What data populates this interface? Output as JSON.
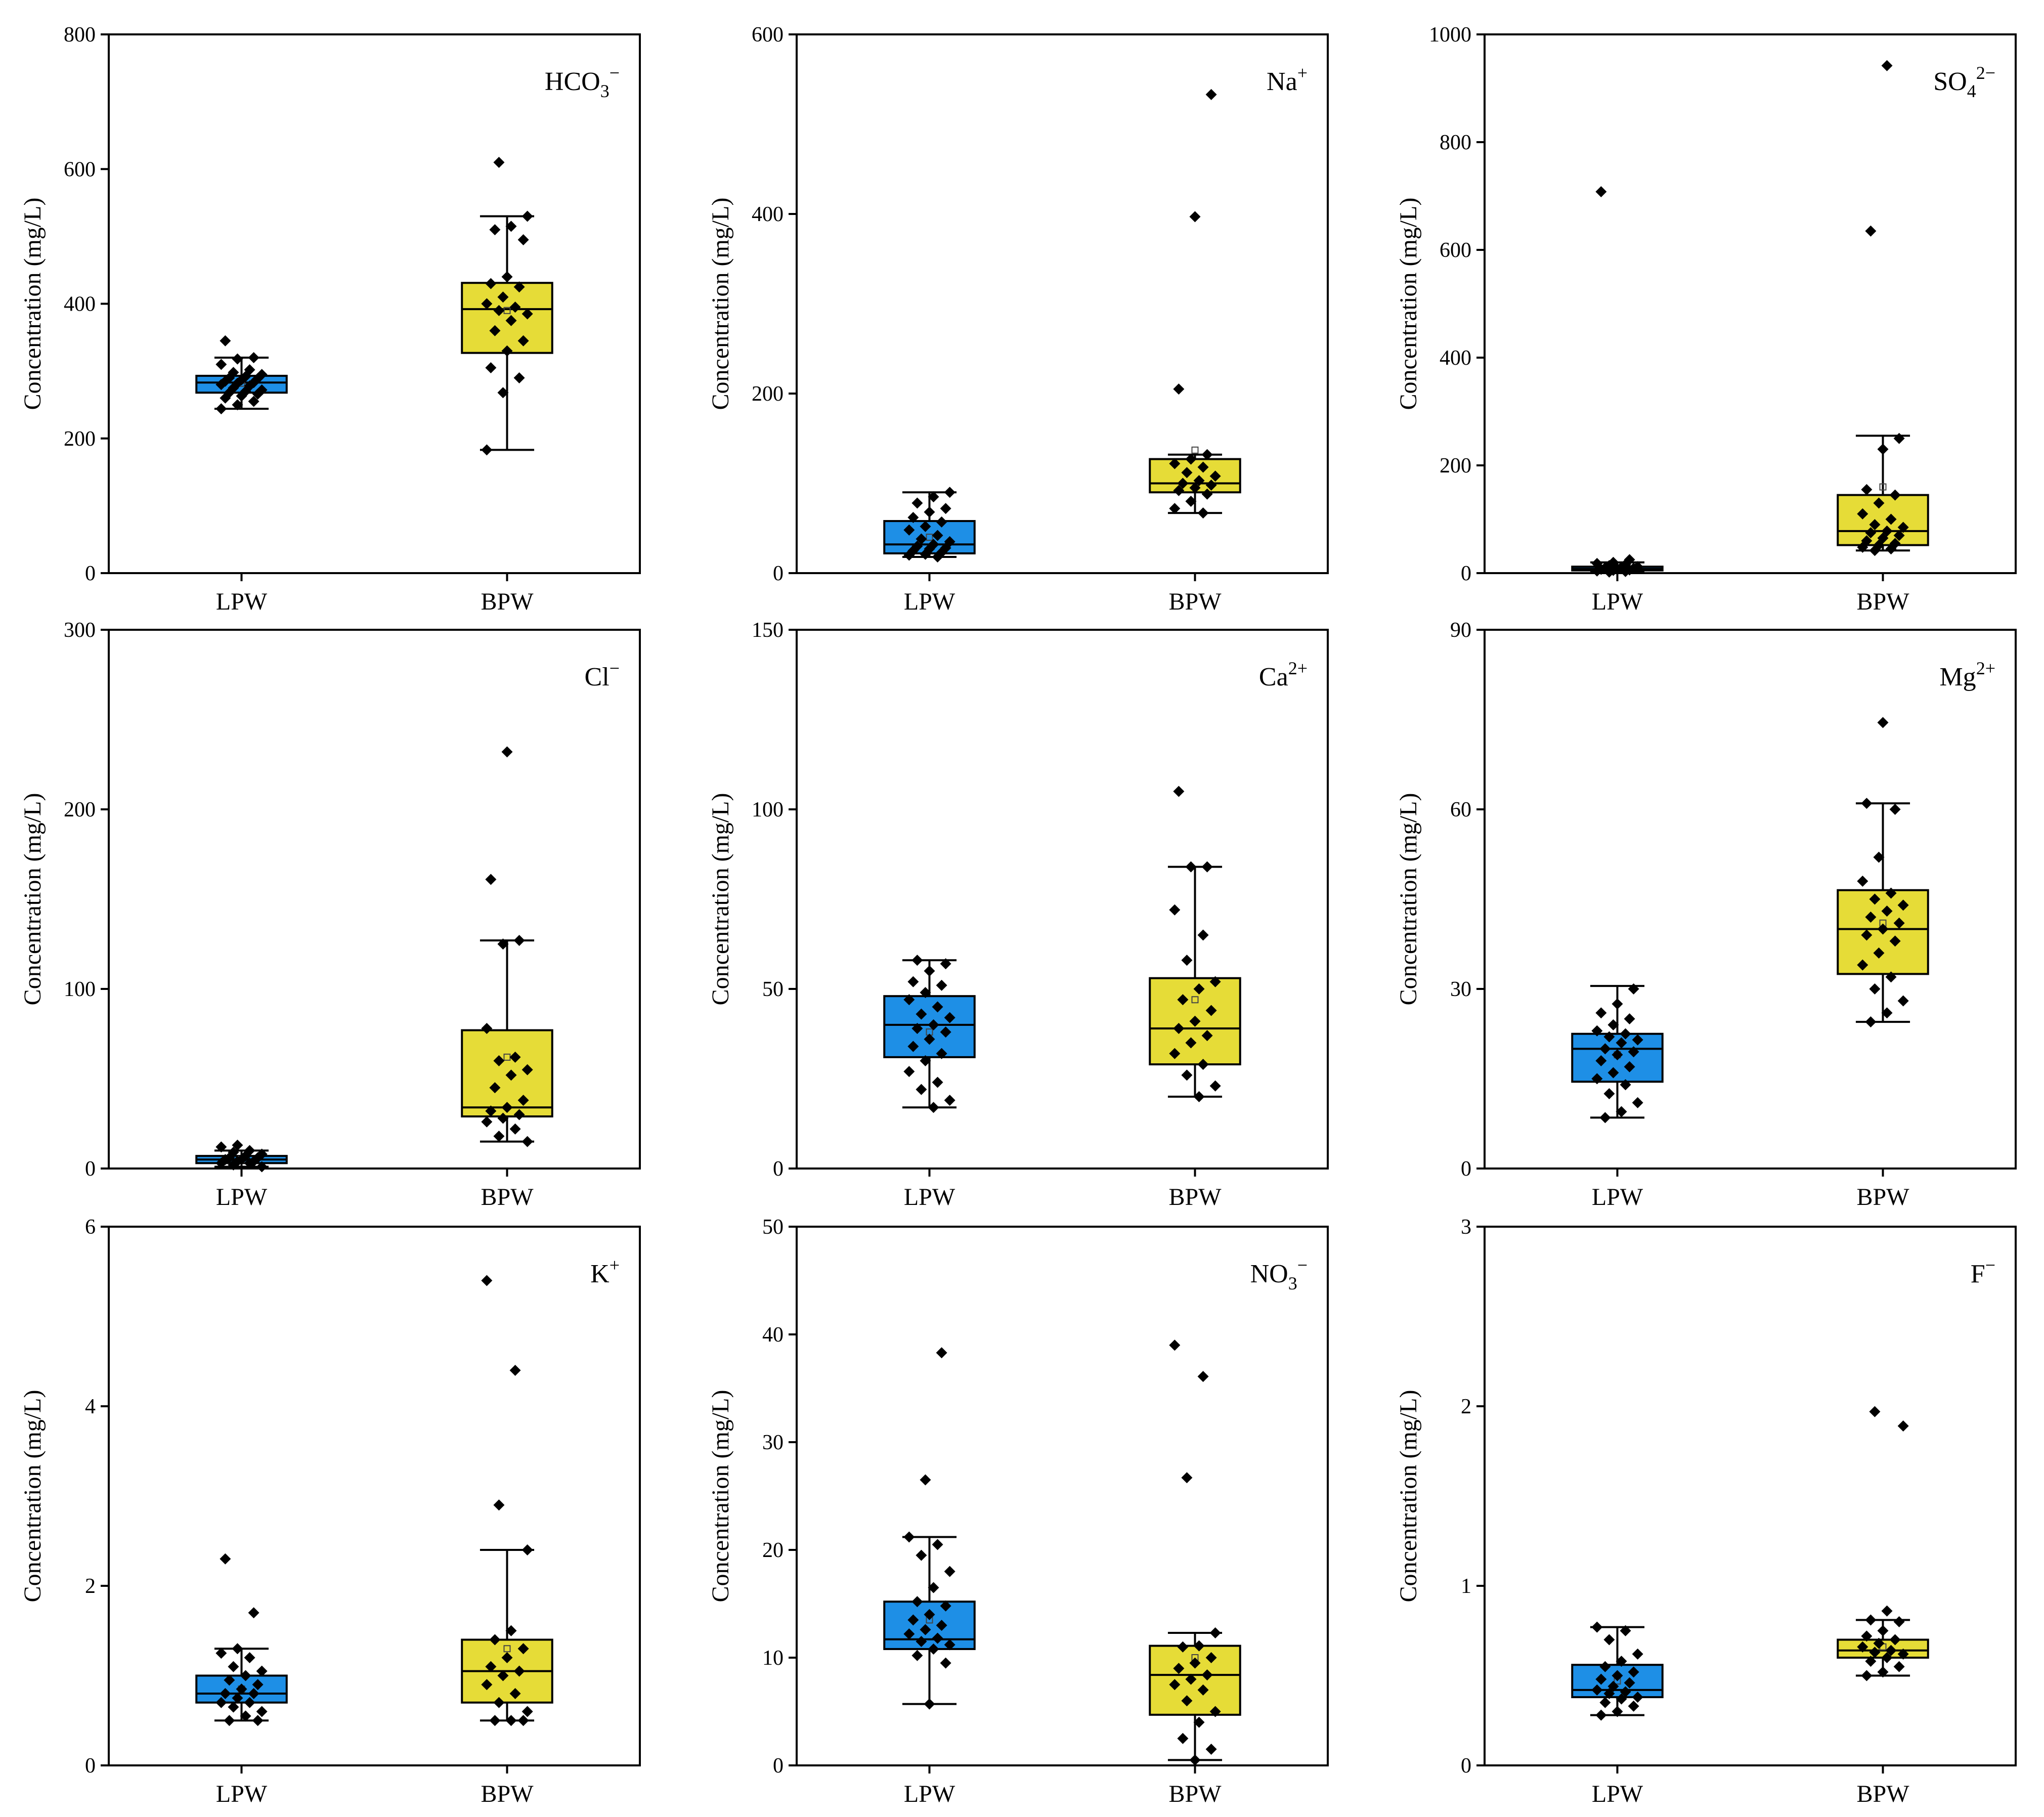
{
  "figure": {
    "rows": 3,
    "cols": 3
  },
  "colors": {
    "LPW": "#1e8fe6",
    "BPW": "#e6dc37",
    "point": "#000000",
    "axis": "#000000"
  },
  "chart_data": [
    {
      "type": "box",
      "ion_base": "HCO",
      "ion_sub": "3",
      "ion_sup": "−",
      "ylabel": "Concentration (mg/L)",
      "ylim": [
        0,
        800
      ],
      "yticks": [
        "0",
        "200",
        "400",
        "600",
        "800"
      ],
      "ytick_values": [
        0,
        200,
        400,
        600,
        800
      ],
      "categories": [
        "LPW",
        "BPW"
      ],
      "groups": [
        {
          "name": "LPW",
          "q1": 268,
          "median": 283,
          "q3": 293,
          "whisker_low": 244,
          "whisker_high": 320,
          "mean": 282,
          "points": [
            244,
            250,
            255,
            260,
            263,
            266,
            268,
            270,
            272,
            275,
            278,
            280,
            282,
            283,
            285,
            287,
            289,
            290,
            292,
            295,
            298,
            302,
            310,
            318,
            320,
            345
          ]
        },
        {
          "name": "BPW",
          "q1": 327,
          "median": 392,
          "q3": 431,
          "whisker_low": 183,
          "whisker_high": 530,
          "mean": 390,
          "points": [
            183,
            268,
            290,
            305,
            330,
            345,
            360,
            375,
            385,
            390,
            395,
            400,
            410,
            425,
            430,
            440,
            495,
            510,
            515,
            530,
            610
          ]
        }
      ]
    },
    {
      "type": "box",
      "ion_base": "Na",
      "ion_sub": "",
      "ion_sup": "+",
      "ylabel": "Concentration (mg/L)",
      "ylim": [
        0,
        600
      ],
      "yticks": [
        "0",
        "200",
        "400",
        "600"
      ],
      "ytick_values": [
        0,
        200,
        400,
        600
      ],
      "categories": [
        "LPW",
        "BPW"
      ],
      "groups": [
        {
          "name": "LPW",
          "q1": 22,
          "median": 32,
          "q3": 58,
          "whisker_low": 18,
          "whisker_high": 90,
          "mean": 40,
          "points": [
            18,
            20,
            21,
            23,
            25,
            27,
            28,
            30,
            32,
            35,
            38,
            42,
            48,
            52,
            57,
            62,
            68,
            72,
            78,
            85,
            90
          ]
        },
        {
          "name": "BPW",
          "q1": 90,
          "median": 100,
          "q3": 127,
          "whisker_low": 67,
          "whisker_high": 132,
          "mean": 137,
          "points": [
            67,
            72,
            80,
            88,
            92,
            95,
            98,
            100,
            103,
            108,
            112,
            118,
            122,
            127,
            132,
            205,
            397,
            533
          ]
        }
      ]
    },
    {
      "type": "box",
      "ion_base": "SO",
      "ion_sub": "4",
      "ion_sup": "2−",
      "ylabel": "Concentration (mg/L)",
      "ylim": [
        0,
        1000
      ],
      "yticks": [
        "0",
        "200",
        "400",
        "600",
        "800",
        "1000"
      ],
      "ytick_values": [
        0,
        200,
        400,
        600,
        800,
        1000
      ],
      "categories": [
        "LPW",
        "BPW"
      ],
      "groups": [
        {
          "name": "LPW",
          "q1": 5,
          "median": 8,
          "q3": 12,
          "whisker_low": 2,
          "whisker_high": 20,
          "mean": 9,
          "points": [
            2,
            3,
            4,
            5,
            6,
            7,
            8,
            9,
            10,
            11,
            12,
            14,
            16,
            18,
            20,
            25,
            708
          ]
        },
        {
          "name": "BPW",
          "q1": 52,
          "median": 78,
          "q3": 145,
          "whisker_low": 42,
          "whisker_high": 255,
          "mean": 160,
          "points": [
            42,
            45,
            48,
            52,
            55,
            60,
            65,
            70,
            75,
            78,
            85,
            90,
            100,
            110,
            130,
            145,
            155,
            230,
            250,
            635,
            942
          ]
        }
      ]
    },
    {
      "type": "box",
      "ion_base": "Cl",
      "ion_sub": "",
      "ion_sup": "−",
      "ylabel": "Concentration (mg/L)",
      "ylim": [
        0,
        300
      ],
      "yticks": [
        "0",
        "100",
        "200",
        "300"
      ],
      "ytick_values": [
        0,
        100,
        200,
        300
      ],
      "categories": [
        "LPW",
        "BPW"
      ],
      "groups": [
        {
          "name": "LPW",
          "q1": 3,
          "median": 5,
          "q3": 7,
          "whisker_low": 1,
          "whisker_high": 10,
          "mean": 5,
          "points": [
            1,
            2,
            3,
            3,
            4,
            4,
            5,
            5,
            6,
            6,
            7,
            8,
            9,
            10,
            12,
            13
          ]
        },
        {
          "name": "BPW",
          "q1": 29,
          "median": 34,
          "q3": 77,
          "whisker_low": 15,
          "whisker_high": 127,
          "mean": 62,
          "points": [
            15,
            18,
            22,
            26,
            28,
            30,
            32,
            34,
            38,
            45,
            52,
            55,
            60,
            62,
            78,
            125,
            127,
            161,
            232
          ]
        }
      ]
    },
    {
      "type": "box",
      "ion_base": "Ca",
      "ion_sub": "",
      "ion_sup": "2+",
      "ylabel": "Concentration (mg/L)",
      "ylim": [
        0,
        150
      ],
      "yticks": [
        "0",
        "50",
        "100",
        "150"
      ],
      "ytick_values": [
        0,
        50,
        100,
        150
      ],
      "categories": [
        "LPW",
        "BPW"
      ],
      "groups": [
        {
          "name": "LPW",
          "q1": 31,
          "median": 40,
          "q3": 48,
          "whisker_low": 17,
          "whisker_high": 58,
          "mean": 38,
          "points": [
            17,
            19,
            22,
            24,
            27,
            30,
            32,
            34,
            36,
            38,
            39,
            40,
            42,
            43,
            45,
            47,
            49,
            51,
            52,
            55,
            57,
            58
          ]
        },
        {
          "name": "BPW",
          "q1": 29,
          "median": 39,
          "q3": 53,
          "whisker_low": 20,
          "whisker_high": 84,
          "mean": 47,
          "points": [
            20,
            23,
            26,
            29,
            32,
            35,
            37,
            39,
            41,
            44,
            47,
            50,
            52,
            58,
            65,
            72,
            84,
            84,
            105
          ]
        }
      ]
    },
    {
      "type": "box",
      "ion_base": "Mg",
      "ion_sub": "",
      "ion_sup": "2+",
      "ylabel": "Concentration (mg/L)",
      "ylim": [
        0,
        90
      ],
      "yticks": [
        "0",
        "30",
        "60",
        "90"
      ],
      "ytick_values": [
        0,
        30,
        60,
        90
      ],
      "categories": [
        "LPW",
        "BPW"
      ],
      "groups": [
        {
          "name": "LPW",
          "q1": 14.5,
          "median": 20,
          "q3": 22.5,
          "whisker_low": 8.5,
          "whisker_high": 30.5,
          "mean": 19,
          "points": [
            8.5,
            9.5,
            11,
            12.5,
            14,
            15,
            16,
            17,
            18,
            19,
            19.5,
            20,
            21,
            21.5,
            22,
            22.5,
            23,
            24,
            25,
            26,
            27.5,
            30
          ]
        },
        {
          "name": "BPW",
          "q1": 32.5,
          "median": 40,
          "q3": 46.5,
          "whisker_low": 24.5,
          "whisker_high": 61,
          "mean": 41,
          "points": [
            24.5,
            26,
            28,
            30,
            32,
            34,
            36,
            38,
            39,
            40,
            41,
            42,
            43,
            44,
            45,
            46,
            48,
            52,
            60,
            61,
            74.5
          ]
        }
      ]
    },
    {
      "type": "box",
      "ion_base": "K",
      "ion_sub": "",
      "ion_sup": "+",
      "ylabel": "Concentration (mg/L)",
      "ylim": [
        0,
        6
      ],
      "yticks": [
        "0",
        "2",
        "4",
        "6"
      ],
      "ytick_values": [
        0,
        2,
        4,
        6
      ],
      "categories": [
        "LPW",
        "BPW"
      ],
      "groups": [
        {
          "name": "LPW",
          "q1": 0.7,
          "median": 0.8,
          "q3": 1.0,
          "whisker_low": 0.5,
          "whisker_high": 1.3,
          "mean": 0.85,
          "points": [
            0.5,
            0.5,
            0.55,
            0.6,
            0.65,
            0.7,
            0.7,
            0.75,
            0.8,
            0.8,
            0.85,
            0.9,
            0.95,
            1.0,
            1.05,
            1.1,
            1.2,
            1.25,
            1.3,
            1.7,
            2.3
          ]
        },
        {
          "name": "BPW",
          "q1": 0.7,
          "median": 1.05,
          "q3": 1.4,
          "whisker_low": 0.5,
          "whisker_high": 2.4,
          "mean": 1.3,
          "points": [
            0.5,
            0.5,
            0.5,
            0.6,
            0.7,
            0.8,
            0.9,
            1.0,
            1.05,
            1.1,
            1.2,
            1.3,
            1.4,
            1.5,
            2.4,
            2.9,
            4.4,
            5.4
          ]
        }
      ]
    },
    {
      "type": "box",
      "ion_base": "NO",
      "ion_sub": "3",
      "ion_sup": "−",
      "ylabel": "Concentration (mg/L)",
      "ylim": [
        0,
        50
      ],
      "yticks": [
        "0",
        "10",
        "20",
        "30",
        "40",
        "50"
      ],
      "ytick_values": [
        0,
        10,
        20,
        30,
        40,
        50
      ],
      "categories": [
        "LPW",
        "BPW"
      ],
      "groups": [
        {
          "name": "LPW",
          "q1": 10.8,
          "median": 11.7,
          "q3": 15.2,
          "whisker_low": 5.7,
          "whisker_high": 21.2,
          "mean": 13.5,
          "points": [
            5.7,
            9.5,
            10.2,
            10.8,
            11.2,
            11.5,
            11.8,
            12.2,
            12.6,
            13,
            13.5,
            14,
            14.8,
            15.2,
            16.5,
            18,
            19.5,
            20.5,
            21.2,
            26.5,
            38.3
          ]
        },
        {
          "name": "BPW",
          "q1": 4.7,
          "median": 8.4,
          "q3": 11.1,
          "whisker_low": 0.5,
          "whisker_high": 12.3,
          "mean": 10,
          "points": [
            0.5,
            1.5,
            2.5,
            4,
            5,
            6,
            7,
            7.5,
            8,
            8.4,
            9,
            9.5,
            10,
            11,
            11.1,
            12.3,
            26.7,
            36.1,
            39
          ]
        }
      ]
    },
    {
      "type": "box",
      "ion_base": "F",
      "ion_sub": "",
      "ion_sup": "−",
      "ylabel": "Concentration (mg/L)",
      "ylim": [
        0,
        3
      ],
      "yticks": [
        "0",
        "1",
        "2",
        "3"
      ],
      "ytick_values": [
        0,
        1,
        2,
        3
      ],
      "categories": [
        "LPW",
        "BPW"
      ],
      "groups": [
        {
          "name": "LPW",
          "q1": 0.38,
          "median": 0.42,
          "q3": 0.56,
          "whisker_low": 0.28,
          "whisker_high": 0.77,
          "mean": 0.47,
          "points": [
            0.28,
            0.3,
            0.33,
            0.35,
            0.37,
            0.38,
            0.4,
            0.41,
            0.42,
            0.44,
            0.46,
            0.48,
            0.5,
            0.52,
            0.55,
            0.58,
            0.62,
            0.7,
            0.75,
            0.77
          ]
        },
        {
          "name": "BPW",
          "q1": 0.6,
          "median": 0.64,
          "q3": 0.7,
          "whisker_low": 0.5,
          "whisker_high": 0.81,
          "mean": 0.66,
          "points": [
            0.5,
            0.52,
            0.55,
            0.58,
            0.6,
            0.62,
            0.63,
            0.64,
            0.66,
            0.68,
            0.7,
            0.72,
            0.75,
            0.8,
            0.81,
            0.86,
            1.89,
            1.97
          ]
        }
      ]
    }
  ]
}
